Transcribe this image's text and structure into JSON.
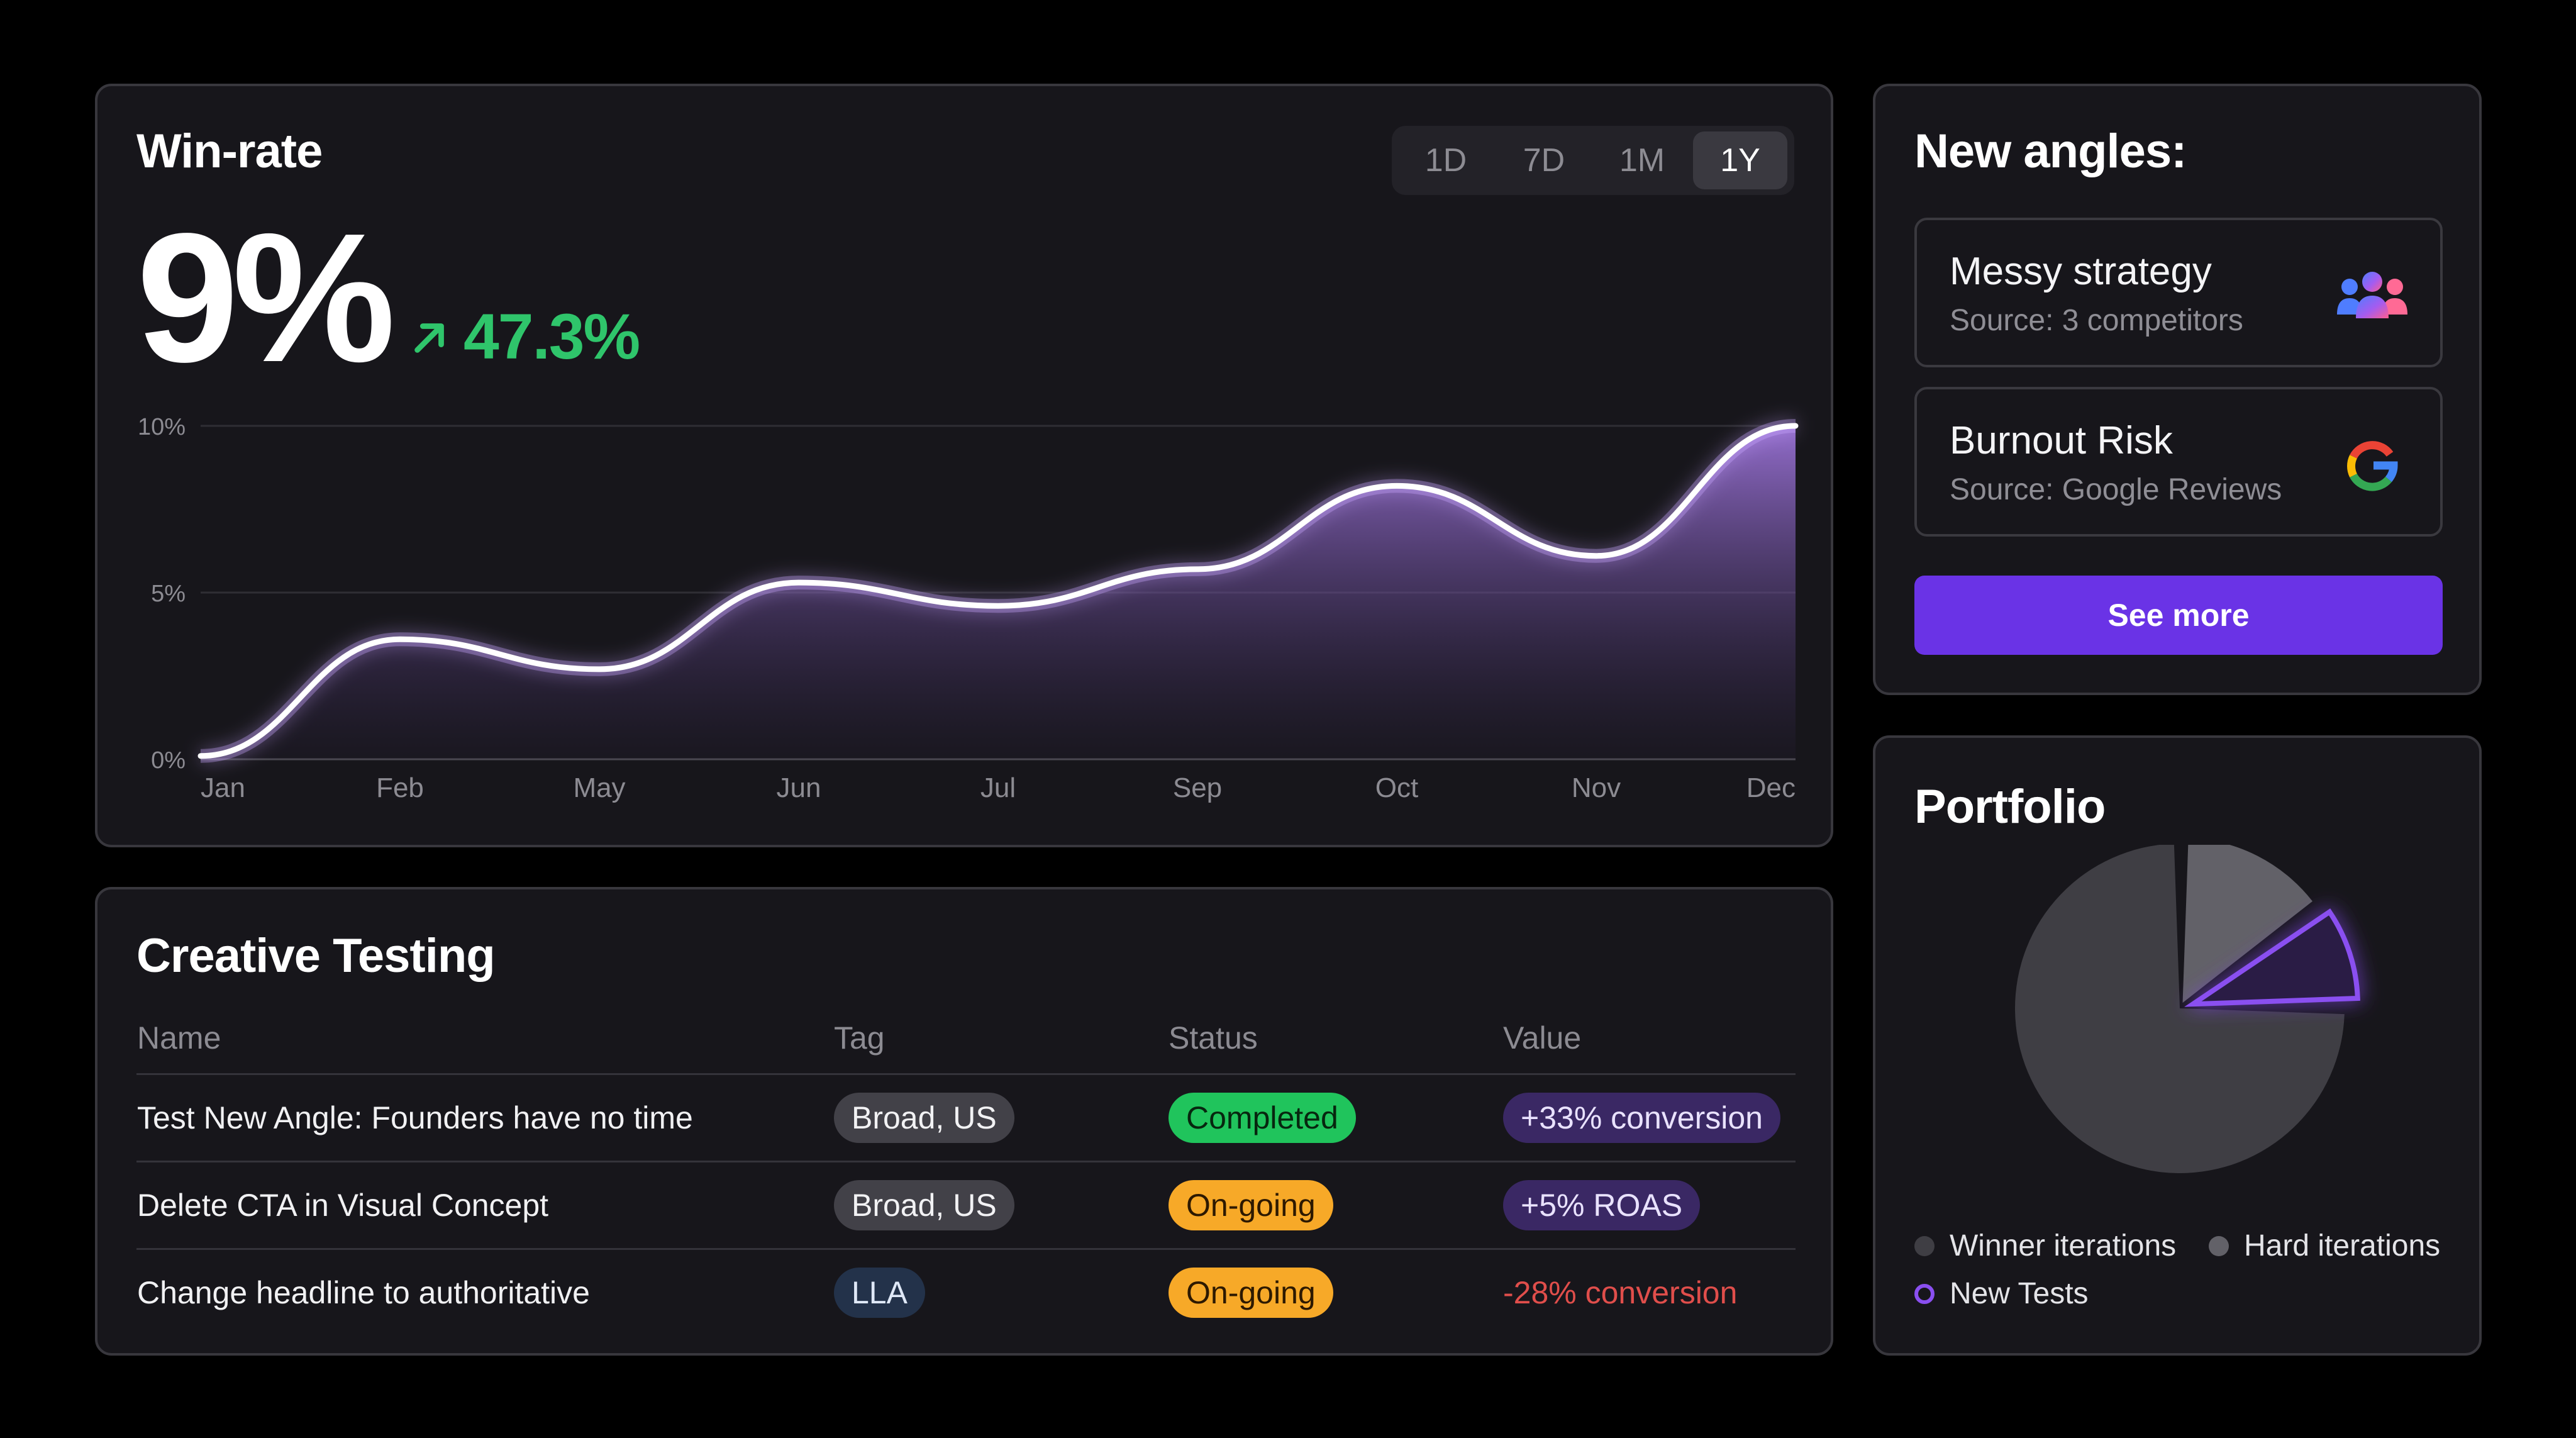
{
  "winrate": {
    "title": "Win-rate",
    "ranges": [
      "1D",
      "7D",
      "1M",
      "1Y"
    ],
    "active_range": "1Y",
    "value": "9%",
    "delta": "47.3%",
    "delta_color": "#2fc56b"
  },
  "chart_data": {
    "type": "area",
    "categories": [
      "Jan",
      "Feb",
      "May",
      "Jun",
      "Jul",
      "Sep",
      "Oct",
      "Nov",
      "Dec"
    ],
    "series": [
      {
        "values": [
          0.1,
          3.6,
          2.7,
          5.3,
          4.6,
          5.7,
          8.2,
          6.1,
          10.0
        ]
      }
    ],
    "yticks": [
      "0%",
      "5%",
      "10%"
    ],
    "ylim": [
      0,
      10
    ],
    "grid": true,
    "line_color": "#ffffff",
    "fill_color": "#8d66c9"
  },
  "testing": {
    "title": "Creative Testing",
    "columns": [
      "Name",
      "Tag",
      "Status",
      "Value"
    ],
    "rows": [
      {
        "name": "Test New Angle: Founders have no time",
        "tag": "Broad, US",
        "status": "Completed",
        "value": "+33% conversion"
      },
      {
        "name": "Delete CTA in Visual Concept",
        "tag": "Broad, US",
        "status": "On-going",
        "value": "+5% ROAS"
      },
      {
        "name": "Change headline to authoritative",
        "tag": "LLA",
        "status": "On-going",
        "value": "-28% conversion"
      }
    ]
  },
  "angles": {
    "title": "New angles:",
    "items": [
      {
        "title": "Messy strategy",
        "source": "Source: 3 competitors",
        "icon": "users-group-icon"
      },
      {
        "title": "Burnout Risk",
        "source": "Source: Google Reviews",
        "icon": "google-logo-icon"
      }
    ],
    "button": "See more",
    "button_color": "#6a33e6"
  },
  "portfolio": {
    "title": "Portfolio",
    "slices": [
      {
        "name": "Winner iterations",
        "share": 0.75,
        "color": "#3f3e44"
      },
      {
        "name": "Hard iterations",
        "share": 0.15,
        "color": "#626168"
      },
      {
        "name": "New Tests",
        "share": 0.1,
        "color": "#8a4ff0"
      }
    ],
    "legend": [
      "Winner iterations",
      "Hard iterations",
      "New Tests"
    ]
  }
}
